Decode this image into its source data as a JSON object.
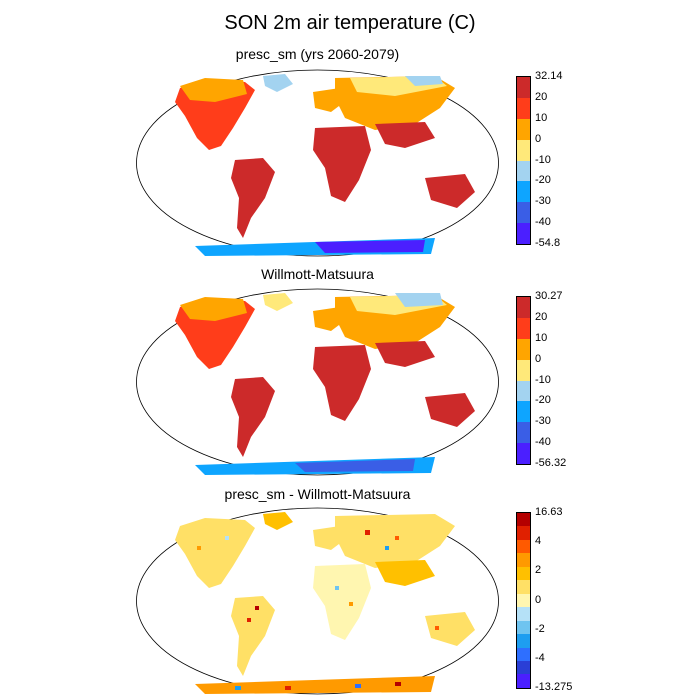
{
  "title": "SON 2m air temperature (C)",
  "panels": [
    {
      "id": "model",
      "title": "presc_sm (yrs 2060-2079)",
      "colorbar": {
        "colors": [
          "#4b1fff",
          "#3a5ee6",
          "#0ea5ff",
          "#a3d3f0",
          "#ffe97a",
          "#ffa500",
          "#ff3d1a",
          "#cc2a2a"
        ],
        "labels": [
          "32.14",
          "20",
          "10",
          "0",
          "-10",
          "-20",
          "-30",
          "-40",
          "-54.8"
        ]
      }
    },
    {
      "id": "obs",
      "title": "Willmott-Matsuura",
      "colorbar": {
        "colors": [
          "#4b1fff",
          "#3a5ee6",
          "#0ea5ff",
          "#a3d3f0",
          "#ffe97a",
          "#ffa500",
          "#ff3d1a",
          "#cc2a2a"
        ],
        "labels": [
          "30.27",
          "20",
          "10",
          "0",
          "-10",
          "-20",
          "-30",
          "-40",
          "-56.32"
        ]
      }
    },
    {
      "id": "diff",
      "title": "presc_sm - Willmott-Matsuura",
      "colorbar": {
        "colors": [
          "#4b1fff",
          "#2a3fd6",
          "#2e6fff",
          "#1e9ef0",
          "#6fc4f0",
          "#b5e1f7",
          "#fff6b0",
          "#ffe066",
          "#ffc000",
          "#ff9a00",
          "#ff5a00",
          "#e02000",
          "#b40000"
        ],
        "labels": [
          "16.63",
          "4",
          "2",
          "0",
          "-2",
          "-4",
          "-13.275"
        ]
      }
    }
  ]
}
